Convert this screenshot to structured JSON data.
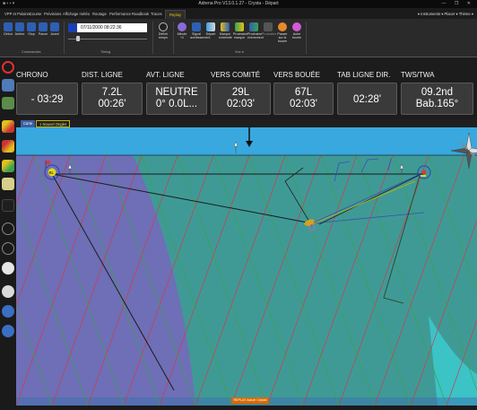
{
  "window": {
    "title": "Adrena Pro V13.0.1.27 - Crysta - Départ",
    "controls": "—  ❐  ✕"
  },
  "tabs": [
    {
      "label": "VPP et Polaires"
    },
    {
      "label": "Course"
    },
    {
      "label": "Prévisions"
    },
    {
      "label": "Affichage météo"
    },
    {
      "label": "Routage"
    },
    {
      "label": "Performance"
    },
    {
      "label": "Roadbook"
    },
    {
      "label": "Traces"
    },
    {
      "label": "Replay",
      "active": true
    }
  ],
  "tabs_right": "▾ Instruments ▾ Placer ▾ Thème ▾",
  "ribbon": {
    "commands": {
      "label": "Commandes",
      "buttons": [
        {
          "label": "Début"
        },
        {
          "label": "Arrière"
        },
        {
          "label": "Stop"
        },
        {
          "label": "Pause"
        },
        {
          "label": "Avant"
        }
      ]
    },
    "timing": {
      "label": "Timing",
      "time_value": "07/11/2000 08:22:36",
      "speed_label": "Définir temps"
    },
    "view": {
      "label": "Vue à",
      "buttons": [
        {
          "label": "Minute +1"
        },
        {
          "label": "Signal avertissement"
        },
        {
          "label": "Départ"
        },
        {
          "label": "Marque extrémité"
        },
        {
          "label": "Prochaine marque"
        },
        {
          "label": "Prochaine évènement"
        },
        {
          "label": "Prochaine"
        },
        {
          "label": "Passer sur le bouée"
        },
        {
          "label": "Autre bouée"
        }
      ]
    }
  },
  "panels": [
    {
      "label": "CHRONO",
      "value": "- 03:29"
    },
    {
      "label": "DIST. LIGNE",
      "value1": "7.2L",
      "value2": "00:26'"
    },
    {
      "label": "AVT. LIGNE",
      "value1": "NEUTRE",
      "value2": "0° 0.0L..."
    },
    {
      "label": "VERS COMITÉ",
      "value1": "29L",
      "value2": "02:03'"
    },
    {
      "label": "VERS BOUÉE",
      "value1": "67L",
      "value2": "02:03'"
    },
    {
      "label": "TAB LIGNE DIR.",
      "value": "02:28'"
    },
    {
      "label": "TWS/TWA",
      "value1": "09.2nd",
      "value2": "Bab.165°"
    }
  ],
  "layer_tabs": [
    {
      "label": "Carte",
      "active": true
    },
    {
      "label": "1 Nouvel Onglet"
    }
  ],
  "map": {
    "start_mark_label": "BL",
    "colors": {
      "sky": "#39a8df",
      "water_purple": "#6e6fb6",
      "water_teal": "#3f9a96",
      "line_red": "#d23a4a",
      "line_green": "#3aa24e"
    }
  },
  "status": {
    "replay_label": "REPLAY Actuel Crystal"
  }
}
